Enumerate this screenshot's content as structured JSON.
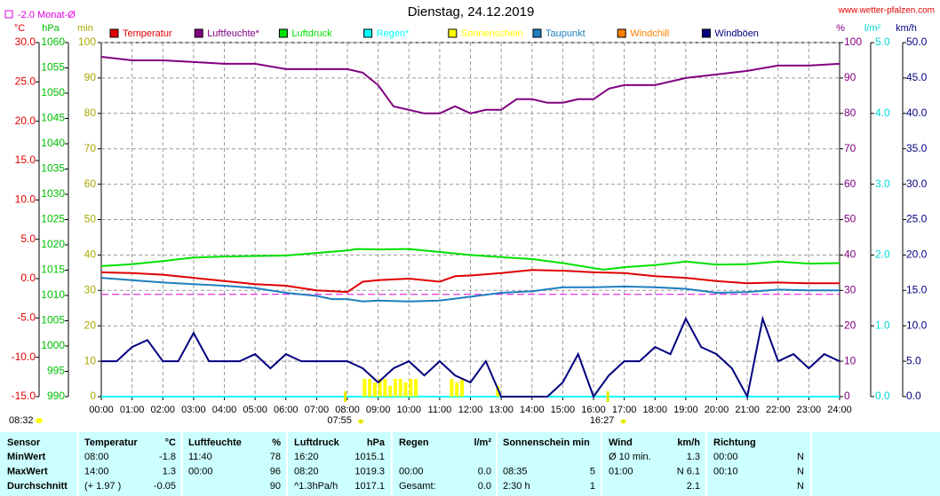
{
  "chart_data": {
    "type": "line",
    "title": "Dienstag, 24.12.2019",
    "source": "www.wetter-pfalzen.com",
    "monthly_avg": {
      "label": "-2.0 Monat-Ø",
      "value": -2.0,
      "color": "#e000e0",
      "axis": 0
    },
    "timestamp": "08:32",
    "annotations": [
      {
        "text": "07:55",
        "x": 7.9167
      },
      {
        "text": "16:27",
        "x": 16.45
      }
    ],
    "xlim": [
      0,
      24
    ],
    "xticks": [
      {
        "value": 0,
        "label": "00:00"
      },
      {
        "value": 1,
        "label": "01:00"
      },
      {
        "value": 2,
        "label": "02:00"
      },
      {
        "value": 3,
        "label": "03:00"
      },
      {
        "value": 4,
        "label": "04:00"
      },
      {
        "value": 5,
        "label": "05:00"
      },
      {
        "value": 6,
        "label": "06:00"
      },
      {
        "value": 7,
        "label": "07:00"
      },
      {
        "value": 8,
        "label": "08:00"
      },
      {
        "value": 9,
        "label": "09:00"
      },
      {
        "value": 10,
        "label": "10:00"
      },
      {
        "value": 11,
        "label": "11:00"
      },
      {
        "value": 12,
        "label": "12:00"
      },
      {
        "value": 13,
        "label": "13:00"
      },
      {
        "value": 14,
        "label": "14:00"
      },
      {
        "value": 15,
        "label": "15:00"
      },
      {
        "value": 16,
        "label": "16:00"
      },
      {
        "value": 17,
        "label": "17:00"
      },
      {
        "value": 18,
        "label": "18:00"
      },
      {
        "value": 19,
        "label": "19:00"
      },
      {
        "value": 20,
        "label": "20:00"
      },
      {
        "value": 21,
        "label": "21:00"
      },
      {
        "value": 22,
        "label": "22:00"
      },
      {
        "value": 23,
        "label": "23:00"
      },
      {
        "value": 24,
        "label": "24:00"
      }
    ],
    "grid": true,
    "axes": [
      {
        "label": "°C",
        "color": "#e00000",
        "lim": [
          -15,
          30
        ],
        "ticks": [
          {
            "value": 30,
            "label": "30.0"
          },
          {
            "value": 25,
            "label": "25.0"
          },
          {
            "value": 20,
            "label": "20.0"
          },
          {
            "value": 15,
            "label": "15.0"
          },
          {
            "value": 10,
            "label": "10.0"
          },
          {
            "value": 5,
            "label": "5.0"
          },
          {
            "value": 0,
            "label": "0.0"
          },
          {
            "value": -5,
            "label": "-5.0"
          },
          {
            "value": -10,
            "label": "-10.0"
          },
          {
            "value": -15,
            "label": "-15.0"
          }
        ]
      },
      {
        "label": "hPa",
        "color": "#00c000",
        "lim": [
          990,
          1060
        ],
        "ticks": [
          1060,
          1055,
          1050,
          1045,
          1040,
          1035,
          1030,
          1025,
          1020,
          1015,
          1010,
          1005,
          1000,
          995,
          990
        ]
      },
      {
        "label": "min",
        "color": "#a8a800",
        "lim": [
          0,
          100
        ],
        "ticks": [
          100,
          90,
          80,
          70,
          60,
          50,
          40,
          30,
          20,
          10,
          0
        ]
      },
      {
        "label": "%",
        "color": "#800080",
        "lim": [
          0,
          100
        ],
        "ticks": [
          100,
          90,
          80,
          70,
          60,
          50,
          40,
          30,
          20,
          10,
          0
        ],
        "grid": true
      },
      {
        "label": "l/m²",
        "color": "#00d8d8",
        "lim": [
          0,
          5
        ],
        "ticks": [
          {
            "value": 5,
            "label": "5.0"
          },
          {
            "value": 4,
            "label": "4.0"
          },
          {
            "value": 3,
            "label": "3.0"
          },
          {
            "value": 2,
            "label": "2.0"
          },
          {
            "value": 1,
            "label": "1.0"
          },
          {
            "value": 0,
            "label": "0.0"
          }
        ]
      },
      {
        "label": "km/h",
        "color": "#000080",
        "lim": [
          0,
          50
        ],
        "ticks": [
          {
            "value": 50,
            "label": "50.0"
          },
          {
            "value": 45,
            "label": "45.0"
          },
          {
            "value": 40,
            "label": "40.0"
          },
          {
            "value": 35,
            "label": "35.0"
          },
          {
            "value": 30,
            "label": "30.0"
          },
          {
            "value": 25,
            "label": "25.0"
          },
          {
            "value": 20,
            "label": "20.0"
          },
          {
            "value": 15,
            "label": "15.0"
          },
          {
            "value": 10,
            "label": "10.0"
          },
          {
            "value": 5,
            "label": "5.0"
          },
          {
            "value": 0,
            "label": "0.0"
          }
        ]
      }
    ],
    "series": [
      {
        "name": "Temperatur",
        "color": "#e00000",
        "axis": 0,
        "type": "line",
        "x": [
          0,
          1,
          2,
          3,
          4,
          5,
          6,
          7,
          8,
          8.5,
          9,
          10,
          11,
          11.5,
          12,
          13,
          14,
          15,
          16,
          17,
          18,
          19,
          20,
          21,
          22,
          23,
          24
        ],
        "values": [
          0.8,
          0.7,
          0.5,
          0.1,
          -0.3,
          -0.7,
          -0.9,
          -1.5,
          -1.7,
          -0.4,
          -0.2,
          0,
          -0.4,
          0.3,
          0.4,
          0.7,
          1.1,
          1,
          0.8,
          0.7,
          0.3,
          0.1,
          -0.3,
          -0.6,
          -0.5,
          -0.6,
          -0.6
        ]
      },
      {
        "name": "Luftfeuchte*",
        "color": "#800080",
        "axis": 3,
        "type": "line",
        "x": [
          0,
          1,
          2,
          3,
          4,
          5,
          6,
          7,
          8,
          8.5,
          9,
          9.5,
          10,
          10.5,
          11,
          11.5,
          12,
          12.5,
          13,
          13.5,
          14,
          14.5,
          15,
          15.5,
          16,
          16.5,
          17,
          18,
          19,
          20,
          21,
          22,
          23,
          24
        ],
        "values": [
          96,
          95,
          95,
          94.5,
          94,
          94,
          92.5,
          92.5,
          92.5,
          91.5,
          88,
          82,
          81,
          80,
          80,
          82,
          80,
          81,
          81,
          84,
          84,
          83,
          83,
          84,
          84,
          87,
          88,
          88,
          90,
          91,
          92,
          93.5,
          93.5,
          94
        ]
      },
      {
        "name": "Luftdruck",
        "color": "#00e000",
        "axis": 1,
        "type": "line",
        "x": [
          0,
          1,
          2,
          3,
          4,
          5,
          6,
          7,
          8,
          8.33,
          9,
          10,
          11,
          12,
          13,
          14,
          15,
          16,
          16.33,
          17,
          18,
          19,
          20,
          21,
          22,
          23,
          24
        ],
        "values": [
          1015.8,
          1016.2,
          1016.8,
          1017.5,
          1017.7,
          1017.8,
          1017.9,
          1018.4,
          1018.9,
          1019.2,
          1019.1,
          1019.2,
          1018.6,
          1018,
          1017.6,
          1017.2,
          1016.4,
          1015.4,
          1015.1,
          1015.6,
          1016,
          1016.7,
          1016.1,
          1016.2,
          1016.7,
          1016.3,
          1016.4
        ]
      },
      {
        "name": "Regen*",
        "color": "#00ffff",
        "axis": 4,
        "type": "line",
        "x": [
          0,
          24
        ],
        "values": [
          0,
          0
        ]
      },
      {
        "name": "Sonnenschein",
        "color": "#ffff00",
        "axis": 2,
        "type": "bar",
        "x": [
          8.5,
          8.6667,
          8.8333,
          9,
          9.1667,
          9.3333,
          9.5,
          9.6667,
          9.8333,
          10,
          10.1667,
          11.3333,
          11.5,
          11.6667,
          12.8333
        ],
        "values": [
          5,
          5,
          4,
          5,
          5,
          3,
          5,
          5,
          4,
          5,
          5,
          5,
          4,
          5,
          3
        ]
      },
      {
        "name": "Taupunkt",
        "color": "#1f7fbf",
        "axis": 0,
        "type": "line",
        "x": [
          0,
          1,
          2,
          3,
          4,
          5,
          6,
          7,
          7.5,
          8,
          8.5,
          9,
          10,
          11,
          12,
          13,
          14,
          15,
          16,
          17,
          18,
          19,
          20,
          21,
          22,
          23,
          24
        ],
        "values": [
          0.1,
          -0.2,
          -0.5,
          -0.7,
          -0.9,
          -1.2,
          -1.8,
          -2.2,
          -2.6,
          -2.6,
          -2.9,
          -2.8,
          -2.9,
          -2.8,
          -2.3,
          -1.8,
          -1.6,
          -1.1,
          -1.1,
          -1,
          -1.1,
          -1.3,
          -1.8,
          -1.7,
          -1.4,
          -1.5,
          -1.5
        ]
      },
      {
        "name": "Windchill",
        "color": "#ff8000",
        "axis": 0,
        "type": "line",
        "x": [],
        "values": []
      },
      {
        "name": "Windböen",
        "color": "#000080",
        "axis": 5,
        "type": "line",
        "x": [
          0,
          0.5,
          1,
          1.5,
          2,
          2.5,
          3,
          3.5,
          4,
          4.5,
          5,
          5.5,
          6,
          6.5,
          7,
          7.5,
          8,
          8.5,
          9,
          9.5,
          10,
          10.5,
          11,
          11.5,
          12,
          12.5,
          13,
          13.5,
          14,
          14.5,
          15,
          15.5,
          16,
          16.5,
          17,
          17.5,
          18,
          18.5,
          19,
          19.5,
          20,
          20.5,
          21,
          21.5,
          22,
          22.5,
          23,
          23.5,
          24
        ],
        "values": [
          5,
          5,
          7,
          8,
          5,
          5,
          9,
          5,
          5,
          5,
          6,
          4,
          6,
          5,
          5,
          5,
          5,
          4,
          2,
          4,
          5,
          3,
          5,
          3,
          2,
          5,
          0,
          0,
          0,
          0,
          2,
          6,
          0,
          3,
          5,
          5,
          7,
          6,
          11,
          7,
          6,
          4,
          0,
          11,
          5,
          6,
          4,
          6,
          5
        ]
      }
    ]
  },
  "table": {
    "header": [
      "Sensor",
      "Temperatur",
      "°C",
      "Luftfeuchte",
      "%",
      "Luftdruck",
      "hPa",
      "Regen",
      "l/m²",
      "Sonnenschein min",
      null,
      "Wind",
      "km/h",
      "Richtung",
      null
    ],
    "rows": [
      [
        "MinWert",
        "08:00",
        "-1.8",
        "11:40",
        "78",
        "16:20",
        "1015.1",
        null,
        null,
        null,
        null,
        "Ø 10 min.",
        "1.3",
        "00:00",
        "N"
      ],
      [
        "MaxWert",
        "14:00",
        "1.3",
        "00:00",
        "96",
        "08:20",
        "1019.3",
        "00:00",
        "0.0",
        "08:35",
        "5",
        "01:00",
        "N 6.1",
        "00:10",
        "N"
      ],
      [
        "Durchschnitt",
        "(+ 1.97 )",
        "-0.05",
        null,
        "90",
        "^1.3hPa/h",
        "1017.1",
        "Gesamt:",
        "0.0",
        "2:30 h",
        "1",
        null,
        "2.1",
        null,
        "N"
      ]
    ]
  }
}
